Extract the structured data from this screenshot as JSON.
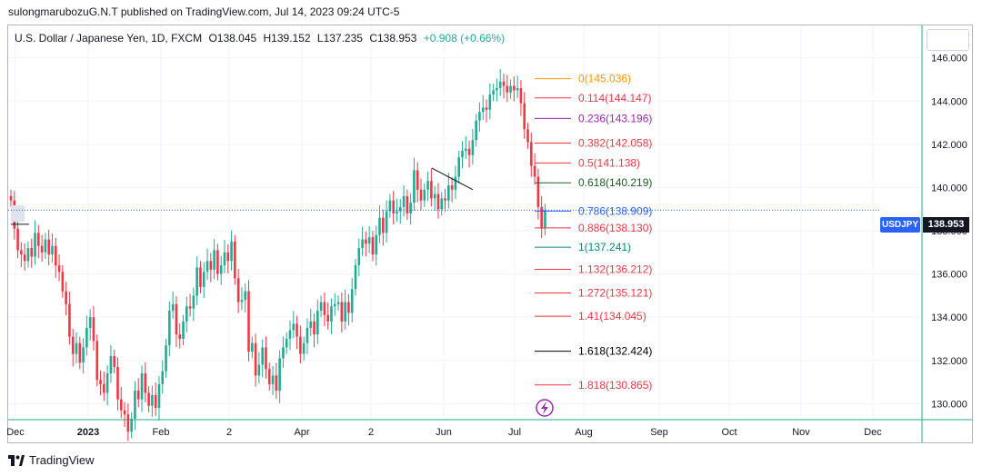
{
  "header": {
    "published": "sulongmarubozuG.N.T published on TradingView.com, Jul 14, 2023 09:24 UTC-5"
  },
  "legend": {
    "symbol": "U.S. Dollar / Japanese Yen, 1D, FXCM",
    "open": "O138.045",
    "high": "H139.152",
    "low": "L137.235",
    "close": "C138.953",
    "change": "+0.908 (+0.66%)"
  },
  "price_scale": {
    "symbol_tag": "USDJPY",
    "last_price": "138.953"
  },
  "footer": {
    "brand": "TradingView"
  },
  "colors": {
    "up": "#22ab94",
    "down": "#f23645",
    "grid": "#f0f3fa",
    "axis_line": "#22ab94",
    "last_price_line": "#2962ff"
  },
  "chart_data": {
    "type": "candlestick",
    "symbol": "USDJPY",
    "timeframe": "1D",
    "ylim": [
      129.3,
      147.5
    ],
    "y_ticks": [
      "146.000",
      "144.000",
      "142.000",
      "140.000",
      "138.000",
      "136.000",
      "134.000",
      "132.000",
      "130.000"
    ],
    "x_ticks": [
      "Dec",
      "2023",
      "Feb",
      "2",
      "Apr",
      "2",
      "Jun",
      "Jul",
      "Aug",
      "Sep",
      "Oct",
      "Nov",
      "Dec"
    ],
    "last_price": 138.953,
    "fibonacci": [
      {
        "label": "0(145.036)",
        "price": 145.036,
        "color": "#ff9800"
      },
      {
        "label": "0.114(144.147)",
        "price": 144.147,
        "color": "#f23645"
      },
      {
        "label": "0.236(143.196)",
        "price": 143.196,
        "color": "#9c27b0"
      },
      {
        "label": "0.382(142.058)",
        "price": 142.058,
        "color": "#f23645"
      },
      {
        "label": "0.5(141.138)",
        "price": 141.138,
        "color": "#f23645"
      },
      {
        "label": "0.618(140.219)",
        "price": 140.219,
        "color": "#1b5e20"
      },
      {
        "label": "0.786(138.909)",
        "price": 138.909,
        "color": "#2962ff"
      },
      {
        "label": "0.886(138.130)",
        "price": 138.13,
        "color": "#f23645"
      },
      {
        "label": "1(137.241)",
        "price": 137.241,
        "color": "#00897b"
      },
      {
        "label": "1.132(136.212)",
        "price": 136.212,
        "color": "#f23645"
      },
      {
        "label": "1.272(135.121)",
        "price": 135.121,
        "color": "#f23645"
      },
      {
        "label": "1.41(134.045)",
        "price": 134.045,
        "color": "#f23645"
      },
      {
        "label": "1.618(132.424)",
        "price": 132.424,
        "color": "#000000"
      },
      {
        "label": "1.818(130.865)",
        "price": 130.865,
        "color": "#f23645"
      }
    ],
    "closes": [
      139.4,
      138.1,
      137.1,
      136.9,
      136.6,
      137.2,
      136.8,
      137.9,
      137.3,
      137.0,
      137.6,
      136.9,
      137.3,
      136.4,
      136.1,
      135.2,
      134.6,
      133.1,
      132.3,
      132.8,
      131.9,
      132.6,
      133.5,
      134.0,
      132.9,
      131.1,
      130.9,
      130.5,
      131.4,
      132.2,
      131.7,
      130.2,
      129.7,
      129.5,
      128.7,
      129.3,
      130.6,
      130.2,
      131.4,
      130.5,
      129.9,
      130.4,
      129.8,
      130.9,
      131.5,
      132.7,
      134.3,
      134.6,
      133.2,
      133.0,
      133.8,
      134.5,
      134.4,
      135.0,
      136.3,
      135.4,
      136.1,
      136.6,
      136.2,
      137.1,
      136.0,
      136.4,
      137.0,
      136.6,
      137.5,
      135.8,
      134.7,
      134.8,
      135.2,
      132.4,
      132.8,
      131.3,
      131.8,
      132.6,
      131.6,
      130.9,
      131.3,
      130.6,
      132.1,
      132.6,
      133.0,
      133.4,
      133.7,
      133.1,
      132.3,
      132.8,
      133.5,
      133.8,
      133.2,
      134.3,
      134.7,
      134.1,
      133.8,
      134.5,
      134.6,
      134.7,
      133.8,
      134.7,
      134.2,
      135.3,
      136.4,
      137.2,
      137.6,
      137.4,
      137.7,
      136.9,
      137.8,
      138.6,
      137.9,
      138.9,
      139.4,
      138.8,
      138.9,
      139.1,
      139.6,
      138.8,
      139.3,
      140.8,
      139.9,
      139.4,
      139.9,
      140.3,
      139.5,
      139.7,
      139.0,
      139.5,
      139.4,
      140.1,
      139.9,
      140.5,
      141.4,
      141.7,
      141.8,
      141.5,
      142.2,
      143.1,
      143.5,
      143.7,
      143.6,
      144.3,
      144.5,
      144.6,
      144.9,
      144.7,
      144.4,
      144.7,
      144.5,
      144.6,
      143.9,
      142.7,
      142.1,
      141.0,
      140.5,
      139.1,
      138.1,
      138.953
    ]
  }
}
